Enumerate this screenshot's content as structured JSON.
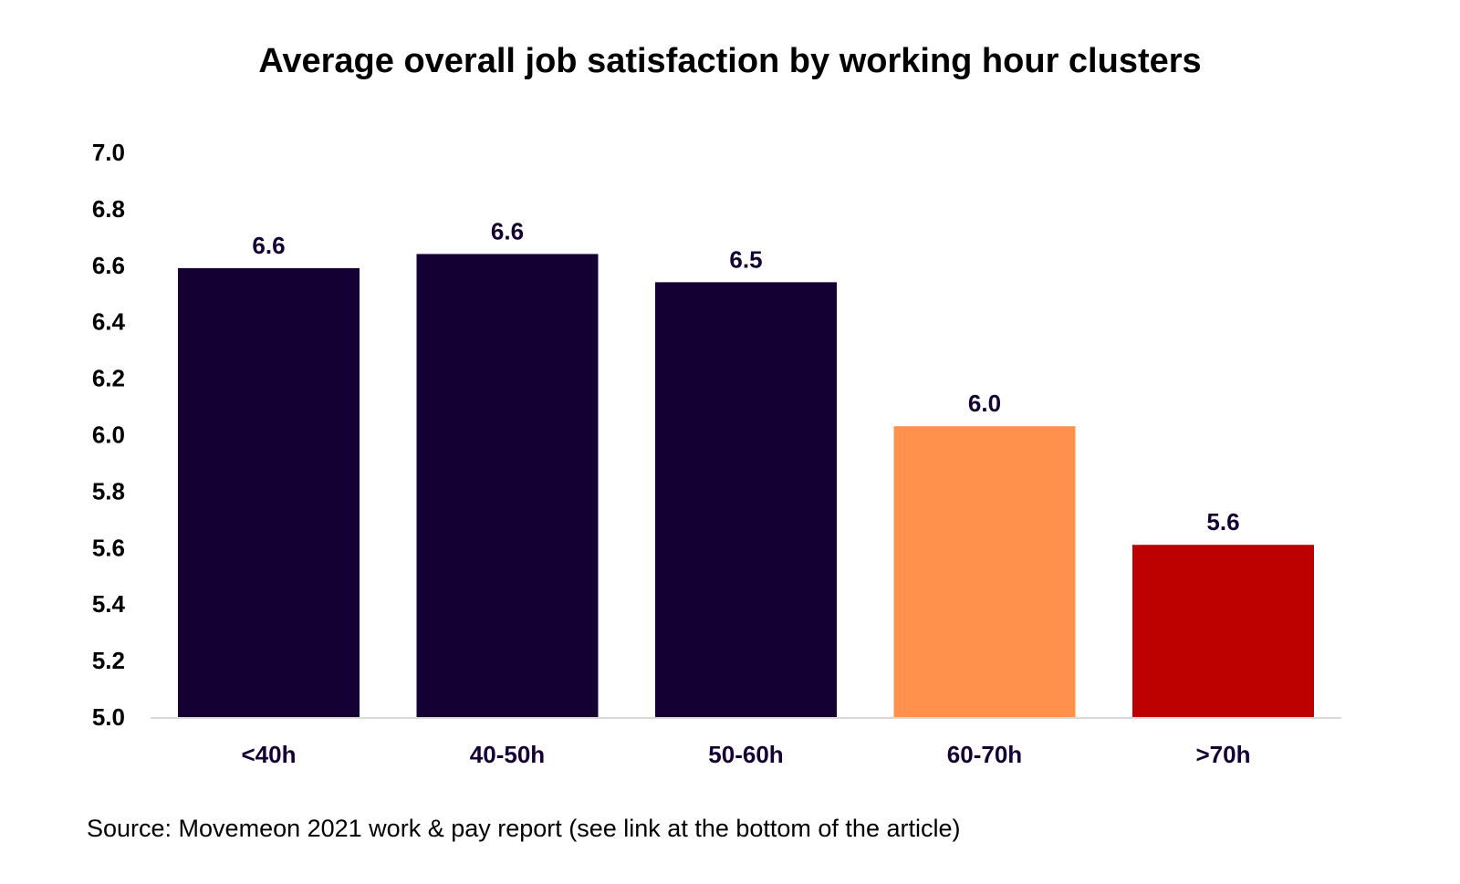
{
  "chart_data": {
    "type": "bar",
    "title": "Average overall job satisfaction by working hour clusters",
    "xlabel": "",
    "ylabel": "",
    "categories": [
      "<40h",
      "40-50h",
      "50-60h",
      "60-70h",
      ">70h"
    ],
    "values": [
      6.59,
      6.64,
      6.54,
      6.03,
      5.61
    ],
    "data_labels": [
      "6.6",
      "6.6",
      "6.5",
      "6.0",
      "5.6"
    ],
    "colors": [
      "#150033",
      "#150033",
      "#150033",
      "#FF914D",
      "#BD0000"
    ],
    "ylim": [
      5.0,
      7.0
    ],
    "yticks": [
      "5.0",
      "5.2",
      "5.4",
      "5.6",
      "5.8",
      "6.0",
      "6.2",
      "6.4",
      "6.6",
      "6.8",
      "7.0"
    ],
    "grid": false,
    "legend": "none",
    "label_color": "#150033",
    "axis_color": "#D9D9D9"
  },
  "source": "Source: Movemeon 2021 work & pay report (see link at the bottom of the article)"
}
